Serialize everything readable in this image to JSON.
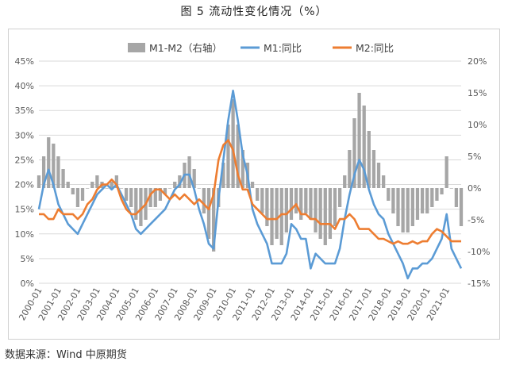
{
  "figure_title": "图 5 流动性变化情况（%）",
  "source_note": "数据来源：Wind  中原期货",
  "chart_data": {
    "type": "line",
    "title": "",
    "y_left": {
      "ticks": [
        "0%",
        "5%",
        "10%",
        "15%",
        "20%",
        "25%",
        "30%",
        "35%",
        "40%",
        "45%"
      ],
      "range": [
        0,
        45
      ]
    },
    "y_right": {
      "ticks": [
        "-15%",
        "-10%",
        "-5%",
        "0%",
        "5%",
        "10%",
        "15%",
        "20%"
      ],
      "range": [
        -15,
        20
      ]
    },
    "x_ticks": [
      "2000-01",
      "2001-01",
      "2002-01",
      "2003-01",
      "2004-01",
      "2005-01",
      "2006-01",
      "2007-01",
      "2008-01",
      "2009-01",
      "2010-01",
      "2011-01",
      "2012-01",
      "2013-01",
      "2014-01",
      "2015-01",
      "2016-01",
      "2017-01",
      "2018-01",
      "2019-01",
      "2020-01",
      "2021-01"
    ],
    "x_range": [
      2000.0,
      2021.75
    ],
    "legend": {
      "placement": "top"
    },
    "series": [
      {
        "name": "M1-M2（右轴）",
        "type": "bar",
        "axis": "right",
        "color": "#a6a6a6",
        "points": [
          [
            2000.0,
            2
          ],
          [
            2000.25,
            5
          ],
          [
            2000.5,
            8
          ],
          [
            2000.75,
            7
          ],
          [
            2001.0,
            5
          ],
          [
            2001.25,
            3
          ],
          [
            2001.5,
            1
          ],
          [
            2001.75,
            -1
          ],
          [
            2002.0,
            -3
          ],
          [
            2002.25,
            -2
          ],
          [
            2002.5,
            0
          ],
          [
            2002.75,
            1
          ],
          [
            2003.0,
            2
          ],
          [
            2003.25,
            1
          ],
          [
            2003.5,
            0
          ],
          [
            2003.75,
            1
          ],
          [
            2004.0,
            2
          ],
          [
            2004.25,
            0
          ],
          [
            2004.5,
            -2
          ],
          [
            2004.75,
            -3
          ],
          [
            2005.0,
            -5
          ],
          [
            2005.25,
            -6
          ],
          [
            2005.5,
            -5
          ],
          [
            2005.75,
            -3
          ],
          [
            2006.0,
            -3
          ],
          [
            2006.25,
            -2
          ],
          [
            2006.5,
            -1
          ],
          [
            2006.75,
            0
          ],
          [
            2007.0,
            1
          ],
          [
            2007.25,
            2
          ],
          [
            2007.5,
            4
          ],
          [
            2007.75,
            5
          ],
          [
            2008.0,
            3
          ],
          [
            2008.25,
            0
          ],
          [
            2008.5,
            -4
          ],
          [
            2008.75,
            -8
          ],
          [
            2009.0,
            -10
          ],
          [
            2009.25,
            -3
          ],
          [
            2009.5,
            4
          ],
          [
            2009.75,
            10
          ],
          [
            2010.0,
            14
          ],
          [
            2010.25,
            10
          ],
          [
            2010.5,
            6
          ],
          [
            2010.75,
            4
          ],
          [
            2011.0,
            1
          ],
          [
            2011.25,
            -2
          ],
          [
            2011.5,
            -4
          ],
          [
            2011.75,
            -6
          ],
          [
            2012.0,
            -9
          ],
          [
            2012.25,
            -8
          ],
          [
            2012.5,
            -9
          ],
          [
            2012.75,
            -7
          ],
          [
            2013.0,
            -5
          ],
          [
            2013.25,
            -4
          ],
          [
            2013.5,
            -5
          ],
          [
            2013.75,
            -4
          ],
          [
            2014.0,
            -5
          ],
          [
            2014.25,
            -7
          ],
          [
            2014.5,
            -8
          ],
          [
            2014.75,
            -9
          ],
          [
            2015.0,
            -8
          ],
          [
            2015.25,
            -6
          ],
          [
            2015.5,
            -3
          ],
          [
            2015.75,
            2
          ],
          [
            2016.0,
            6
          ],
          [
            2016.25,
            11
          ],
          [
            2016.5,
            15
          ],
          [
            2016.75,
            13
          ],
          [
            2017.0,
            9
          ],
          [
            2017.25,
            6
          ],
          [
            2017.5,
            4
          ],
          [
            2017.75,
            2
          ],
          [
            2018.0,
            -2
          ],
          [
            2018.25,
            -4
          ],
          [
            2018.5,
            -6
          ],
          [
            2018.75,
            -7
          ],
          [
            2019.0,
            -7
          ],
          [
            2019.25,
            -6
          ],
          [
            2019.5,
            -5
          ],
          [
            2019.75,
            -4
          ],
          [
            2020.0,
            -4
          ],
          [
            2020.25,
            -3
          ],
          [
            2020.5,
            -2
          ],
          [
            2020.75,
            -1
          ],
          [
            2021.0,
            5
          ],
          [
            2021.25,
            0
          ],
          [
            2021.5,
            -3
          ],
          [
            2021.75,
            -6
          ]
        ]
      },
      {
        "name": "M1:同比",
        "type": "line",
        "axis": "left",
        "color": "#5b9bd5",
        "points": [
          [
            2000.0,
            15
          ],
          [
            2000.25,
            20
          ],
          [
            2000.5,
            23
          ],
          [
            2000.75,
            20
          ],
          [
            2001.0,
            16
          ],
          [
            2001.25,
            14
          ],
          [
            2001.5,
            12
          ],
          [
            2001.75,
            11
          ],
          [
            2002.0,
            10
          ],
          [
            2002.25,
            12
          ],
          [
            2002.5,
            14
          ],
          [
            2002.75,
            16
          ],
          [
            2003.0,
            18
          ],
          [
            2003.25,
            19
          ],
          [
            2003.5,
            20
          ],
          [
            2003.75,
            19
          ],
          [
            2004.0,
            20
          ],
          [
            2004.25,
            18
          ],
          [
            2004.5,
            16
          ],
          [
            2004.75,
            14
          ],
          [
            2005.0,
            11
          ],
          [
            2005.25,
            10
          ],
          [
            2005.5,
            11
          ],
          [
            2005.75,
            12
          ],
          [
            2006.0,
            13
          ],
          [
            2006.25,
            14
          ],
          [
            2006.5,
            15
          ],
          [
            2006.75,
            17
          ],
          [
            2007.0,
            19
          ],
          [
            2007.25,
            20
          ],
          [
            2007.5,
            22
          ],
          [
            2007.75,
            22
          ],
          [
            2008.0,
            19
          ],
          [
            2008.25,
            15
          ],
          [
            2008.5,
            12
          ],
          [
            2008.75,
            8
          ],
          [
            2009.0,
            7
          ],
          [
            2009.25,
            17
          ],
          [
            2009.5,
            25
          ],
          [
            2009.75,
            33
          ],
          [
            2010.0,
            39
          ],
          [
            2010.25,
            33
          ],
          [
            2010.5,
            26
          ],
          [
            2010.75,
            22
          ],
          [
            2011.0,
            15
          ],
          [
            2011.25,
            12
          ],
          [
            2011.5,
            10
          ],
          [
            2011.75,
            8
          ],
          [
            2012.0,
            4
          ],
          [
            2012.25,
            4
          ],
          [
            2012.5,
            4
          ],
          [
            2012.75,
            6
          ],
          [
            2013.0,
            12
          ],
          [
            2013.25,
            11
          ],
          [
            2013.5,
            9
          ],
          [
            2013.75,
            9
          ],
          [
            2014.0,
            3
          ],
          [
            2014.25,
            6
          ],
          [
            2014.5,
            5
          ],
          [
            2014.75,
            4
          ],
          [
            2015.0,
            4
          ],
          [
            2015.25,
            4
          ],
          [
            2015.5,
            7
          ],
          [
            2015.75,
            13
          ],
          [
            2016.0,
            18
          ],
          [
            2016.25,
            22
          ],
          [
            2016.5,
            25
          ],
          [
            2016.75,
            23
          ],
          [
            2017.0,
            19
          ],
          [
            2017.25,
            16
          ],
          [
            2017.5,
            14
          ],
          [
            2017.75,
            13
          ],
          [
            2018.0,
            10
          ],
          [
            2018.25,
            8
          ],
          [
            2018.5,
            6
          ],
          [
            2018.75,
            4
          ],
          [
            2019.0,
            1
          ],
          [
            2019.25,
            3
          ],
          [
            2019.5,
            3
          ],
          [
            2019.75,
            4
          ],
          [
            2020.0,
            4
          ],
          [
            2020.25,
            5
          ],
          [
            2020.5,
            7
          ],
          [
            2020.75,
            9
          ],
          [
            2021.0,
            14
          ],
          [
            2021.25,
            7
          ],
          [
            2021.5,
            5
          ],
          [
            2021.75,
            3
          ]
        ]
      },
      {
        "name": "M2:同比",
        "type": "line",
        "axis": "left",
        "color": "#ed7d31",
        "points": [
          [
            2000.0,
            14
          ],
          [
            2000.25,
            14
          ],
          [
            2000.5,
            13
          ],
          [
            2000.75,
            13
          ],
          [
            2001.0,
            15
          ],
          [
            2001.25,
            14
          ],
          [
            2001.5,
            14
          ],
          [
            2001.75,
            14
          ],
          [
            2002.0,
            13
          ],
          [
            2002.25,
            14
          ],
          [
            2002.5,
            16
          ],
          [
            2002.75,
            17
          ],
          [
            2003.0,
            19
          ],
          [
            2003.25,
            20
          ],
          [
            2003.5,
            20
          ],
          [
            2003.75,
            21
          ],
          [
            2004.0,
            20
          ],
          [
            2004.25,
            17
          ],
          [
            2004.5,
            15
          ],
          [
            2004.75,
            14
          ],
          [
            2005.0,
            14
          ],
          [
            2005.25,
            15
          ],
          [
            2005.5,
            16
          ],
          [
            2005.75,
            18
          ],
          [
            2006.0,
            19
          ],
          [
            2006.25,
            19
          ],
          [
            2006.5,
            18
          ],
          [
            2006.75,
            17
          ],
          [
            2007.0,
            18
          ],
          [
            2007.25,
            17
          ],
          [
            2007.5,
            18
          ],
          [
            2007.75,
            17
          ],
          [
            2008.0,
            16
          ],
          [
            2008.25,
            17
          ],
          [
            2008.5,
            16
          ],
          [
            2008.75,
            15
          ],
          [
            2009.0,
            18
          ],
          [
            2009.25,
            25
          ],
          [
            2009.5,
            28
          ],
          [
            2009.75,
            29
          ],
          [
            2010.0,
            27
          ],
          [
            2010.25,
            22
          ],
          [
            2010.5,
            19
          ],
          [
            2010.75,
            19
          ],
          [
            2011.0,
            16
          ],
          [
            2011.25,
            15
          ],
          [
            2011.5,
            14
          ],
          [
            2011.75,
            13
          ],
          [
            2012.0,
            13
          ],
          [
            2012.25,
            13
          ],
          [
            2012.5,
            14
          ],
          [
            2012.75,
            14
          ],
          [
            2013.0,
            15
          ],
          [
            2013.25,
            16
          ],
          [
            2013.5,
            14
          ],
          [
            2013.75,
            14
          ],
          [
            2014.0,
            13
          ],
          [
            2014.25,
            13
          ],
          [
            2014.5,
            12
          ],
          [
            2014.75,
            12
          ],
          [
            2015.0,
            12
          ],
          [
            2015.25,
            11
          ],
          [
            2015.5,
            13
          ],
          [
            2015.75,
            13
          ],
          [
            2016.0,
            14
          ],
          [
            2016.25,
            13
          ],
          [
            2016.5,
            11
          ],
          [
            2016.75,
            11
          ],
          [
            2017.0,
            11
          ],
          [
            2017.25,
            10
          ],
          [
            2017.5,
            9
          ],
          [
            2017.75,
            9
          ],
          [
            2018.0,
            8.5
          ],
          [
            2018.25,
            8
          ],
          [
            2018.5,
            8.5
          ],
          [
            2018.75,
            8
          ],
          [
            2019.0,
            8
          ],
          [
            2019.25,
            8.5
          ],
          [
            2019.5,
            8
          ],
          [
            2019.75,
            8.5
          ],
          [
            2020.0,
            8.5
          ],
          [
            2020.25,
            10
          ],
          [
            2020.5,
            11
          ],
          [
            2020.75,
            10.5
          ],
          [
            2021.0,
            9.5
          ],
          [
            2021.25,
            8.5
          ],
          [
            2021.5,
            8.5
          ],
          [
            2021.75,
            8.5
          ]
        ]
      }
    ]
  }
}
